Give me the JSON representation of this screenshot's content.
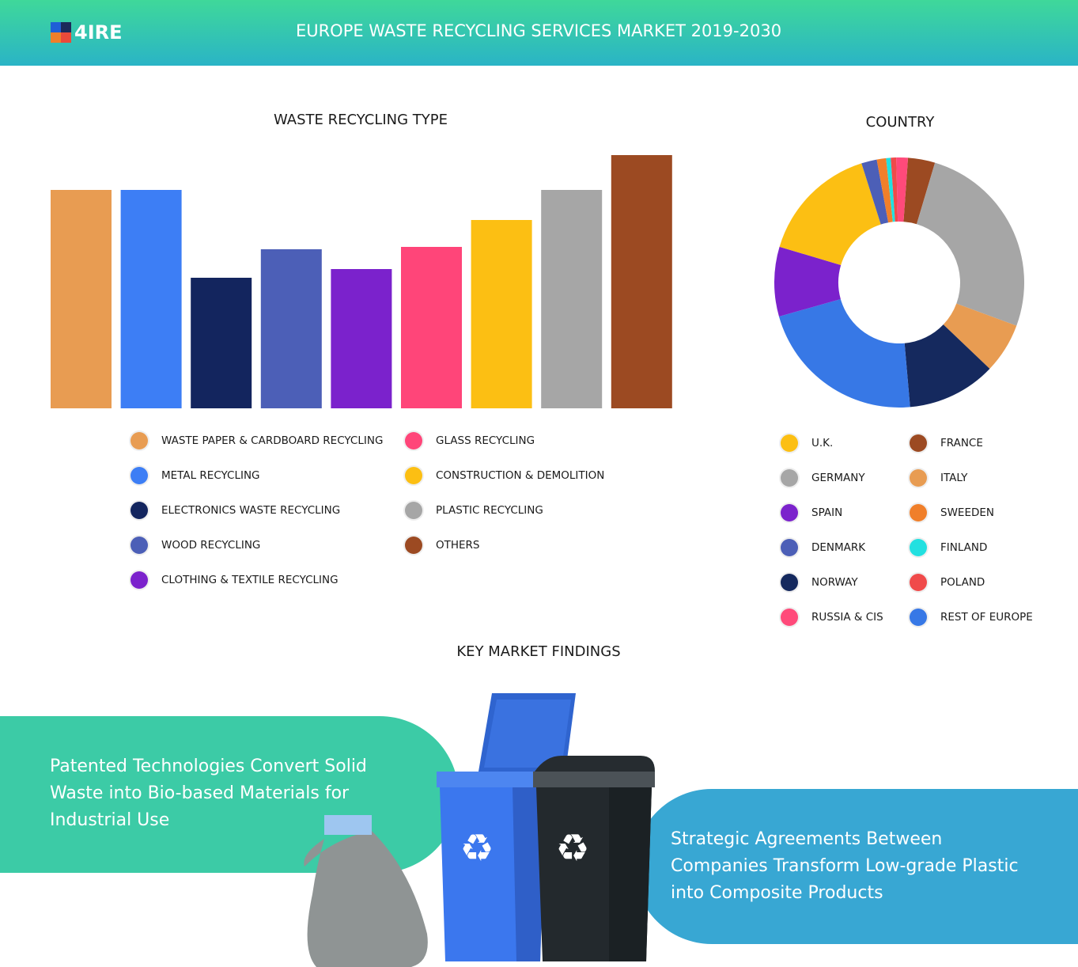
{
  "header": {
    "logo": "4IRE",
    "title": "EUROPE WASTE RECYCLING SERVICES MARKET 2019-2030"
  },
  "chart_data": [
    {
      "type": "bar",
      "title": "WASTE RECYCLING TYPE",
      "categories": [
        "WASTE PAPER & CARDBOARD RECYCLING",
        "METAL RECYCLING",
        "ELECTRONICS WASTE RECYCLING",
        "WOOD RECYCLING",
        "CLOTHING & TEXTILE RECYCLING",
        "GLASS RECYCLING",
        "CONSTRUCTION & DEMOLITION",
        "PLASTIC RECYCLING",
        "OTHERS"
      ],
      "values": [
        27.6,
        27.6,
        16.5,
        20.1,
        17.6,
        20.4,
        23.8,
        27.6,
        32.0
      ],
      "colors": [
        "#e89c52",
        "#3d7ef5",
        "#13255e",
        "#4c5fb7",
        "#7b22cc",
        "#ff4579",
        "#fcbf13",
        "#a6a6a6",
        "#9c4a22"
      ],
      "ylim": [
        0,
        32
      ]
    },
    {
      "type": "pie",
      "title": "COUNTRY",
      "categories": [
        "FRANCE",
        "GERMANY",
        "ITALY",
        "NORWAY",
        "REST OF EUROPE",
        "SPAIN",
        "U.K.",
        "DENMARK",
        "SWEEDEN",
        "FINLAND",
        "POLAND",
        "RUSSIA & CIS"
      ],
      "values": [
        3.5,
        26,
        6.5,
        11.5,
        22,
        9,
        15.5,
        2,
        1.2,
        0.6,
        0.7,
        1.5
      ],
      "colors": [
        "#9c4a22",
        "#a6a6a6",
        "#e89c52",
        "#15295e",
        "#3778e6",
        "#7b22cc",
        "#fcbf13",
        "#4c5fb7",
        "#f07f2a",
        "#22e0e0",
        "#f04a4a",
        "#ff4a7a"
      ],
      "donut": true
    }
  ],
  "key_findings": {
    "title": "KEY MARKET FINDINGS",
    "items": [
      "Patented Technologies Convert Solid Waste into Bio-based Materials for Industrial Use",
      "Strategic Agreements Between Companies Transform Low-grade Plastic into Composite Products"
    ]
  }
}
